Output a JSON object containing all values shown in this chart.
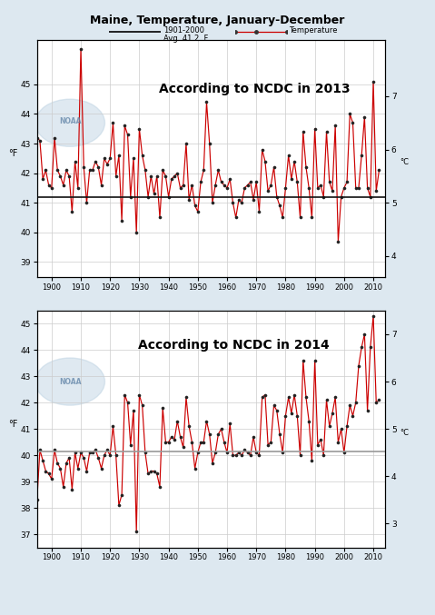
{
  "title": "Maine, Temperature, January-December",
  "legend_avg_label": "1901-2000",
  "legend_avg_sub": "Avg. 41.2  F",
  "legend_temp_label": "Temperature",
  "annotation1": "According to NCDC in 2013",
  "annotation2": "According to NCDC in 2014",
  "line_color": "#cc0000",
  "avg_color1": "#111111",
  "avg_color2": "#999999",
  "avg_value1": 41.2,
  "avg_value2": 40.15,
  "years": [
    1895,
    1896,
    1897,
    1898,
    1899,
    1900,
    1901,
    1902,
    1903,
    1904,
    1905,
    1906,
    1907,
    1908,
    1909,
    1910,
    1911,
    1912,
    1913,
    1914,
    1915,
    1916,
    1917,
    1918,
    1919,
    1920,
    1921,
    1922,
    1923,
    1924,
    1925,
    1926,
    1927,
    1928,
    1929,
    1930,
    1931,
    1932,
    1933,
    1934,
    1935,
    1936,
    1937,
    1938,
    1939,
    1940,
    1941,
    1942,
    1943,
    1944,
    1945,
    1946,
    1947,
    1948,
    1949,
    1950,
    1951,
    1952,
    1953,
    1954,
    1955,
    1956,
    1957,
    1958,
    1959,
    1960,
    1961,
    1962,
    1963,
    1964,
    1965,
    1966,
    1967,
    1968,
    1969,
    1970,
    1971,
    1972,
    1973,
    1974,
    1975,
    1976,
    1977,
    1978,
    1979,
    1980,
    1981,
    1982,
    1983,
    1984,
    1985,
    1986,
    1987,
    1988,
    1989,
    1990,
    1991,
    1992,
    1993,
    1994,
    1995,
    1996,
    1997,
    1998,
    1999,
    2000,
    2001,
    2002,
    2003,
    2004,
    2005,
    2006,
    2007,
    2008,
    2009,
    2010,
    2011,
    2012,
    2013
  ],
  "temps2013": [
    43.2,
    43.1,
    41.8,
    42.1,
    41.6,
    41.5,
    43.2,
    42.1,
    41.9,
    41.6,
    42.1,
    41.9,
    40.7,
    42.4,
    41.5,
    46.2,
    42.2,
    41.0,
    42.1,
    42.1,
    42.4,
    42.2,
    41.6,
    42.5,
    42.3,
    42.5,
    43.7,
    41.9,
    42.6,
    40.4,
    43.6,
    43.3,
    41.2,
    42.5,
    40.0,
    43.5,
    42.6,
    42.1,
    41.2,
    41.9,
    41.3,
    41.9,
    40.5,
    42.1,
    41.9,
    41.2,
    41.8,
    41.9,
    42.0,
    41.5,
    41.6,
    43.0,
    41.1,
    41.6,
    40.9,
    40.7,
    41.7,
    42.1,
    44.4,
    43.0,
    41.0,
    41.6,
    42.1,
    41.7,
    41.6,
    41.5,
    41.8,
    41.0,
    40.5,
    41.1,
    41.0,
    41.5,
    41.6,
    41.7,
    41.1,
    41.7,
    40.7,
    42.8,
    42.4,
    41.4,
    41.6,
    42.2,
    41.2,
    40.9,
    40.5,
    41.5,
    42.6,
    41.8,
    42.4,
    41.7,
    40.5,
    43.4,
    42.2,
    41.5,
    40.5,
    43.5,
    41.5,
    41.6,
    41.2,
    43.4,
    41.7,
    41.4,
    43.6,
    39.7,
    41.2,
    41.5,
    41.7,
    44.0,
    43.7,
    41.5,
    41.5,
    42.6,
    43.9,
    41.5,
    41.2,
    45.1,
    41.4,
    42.1,
    null
  ],
  "temps2014": [
    38.3,
    40.2,
    39.8,
    39.4,
    39.3,
    39.1,
    40.2,
    39.7,
    39.5,
    38.8,
    39.7,
    39.9,
    38.7,
    40.1,
    39.5,
    40.1,
    39.9,
    39.4,
    40.1,
    40.1,
    40.2,
    39.9,
    39.5,
    40.0,
    40.2,
    40.0,
    41.1,
    40.0,
    38.1,
    38.5,
    42.3,
    42.0,
    40.4,
    41.7,
    37.1,
    42.3,
    41.9,
    40.1,
    39.3,
    39.4,
    39.4,
    39.3,
    38.8,
    41.8,
    40.5,
    40.5,
    40.7,
    40.6,
    41.3,
    40.7,
    40.3,
    42.2,
    41.1,
    40.5,
    39.5,
    40.1,
    40.5,
    40.5,
    41.3,
    40.8,
    39.7,
    40.1,
    40.8,
    41.0,
    40.5,
    40.1,
    41.2,
    40.0,
    40.0,
    40.1,
    40.0,
    40.2,
    40.1,
    40.0,
    40.7,
    40.1,
    40.0,
    42.2,
    42.3,
    40.4,
    40.5,
    41.9,
    41.7,
    40.8,
    40.1,
    41.5,
    42.2,
    41.6,
    42.3,
    41.5,
    40.0,
    43.6,
    42.2,
    41.3,
    39.8,
    43.6,
    40.4,
    40.6,
    40.0,
    42.1,
    41.1,
    41.6,
    42.2,
    40.5,
    41.0,
    40.1,
    41.1,
    41.9,
    41.5,
    42.0,
    43.4,
    44.1,
    44.6,
    41.7,
    44.1,
    45.3,
    42.0,
    42.1,
    null
  ],
  "xlim": [
    1895,
    2014
  ],
  "ylim1": [
    38.5,
    46.5
  ],
  "ylim2": [
    36.5,
    45.5
  ],
  "yticks1": [
    39,
    40,
    41,
    42,
    43,
    44,
    45
  ],
  "yticks2": [
    37,
    38,
    39,
    40,
    41,
    42,
    43,
    44,
    45
  ],
  "yticks_right1_c": [
    4,
    5,
    6,
    7
  ],
  "yticks_right2_c": [
    3,
    4,
    5,
    6,
    7
  ],
  "xticks": [
    1900,
    1910,
    1920,
    1930,
    1940,
    1950,
    1960,
    1970,
    1980,
    1990,
    2000,
    2010
  ],
  "bg_color": "#dde8f0",
  "plot_bg": "#ffffff",
  "grid_color": "#cccccc"
}
